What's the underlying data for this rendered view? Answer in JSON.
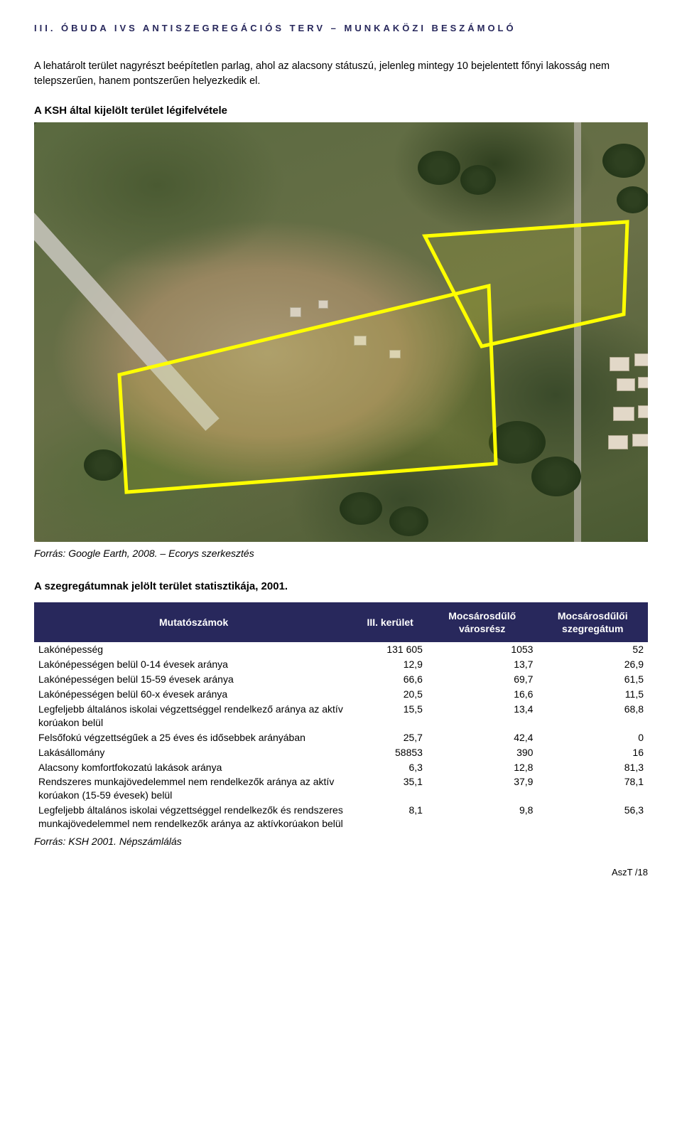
{
  "header": {
    "text": "III. ÓBUDA IVS ANTISZEGREGÁCIÓS TERV – MUNKAKÖZI BESZÁMOLÓ"
  },
  "intro": {
    "paragraph": "A lehatárolt terület nagyrészt beépítetlen parlag, ahol az alacsony státuszú, jelenleg mintegy 10 bejelentett főnyi lakosság nem telepszerűen, hanem pontszerűen helyezkedik el."
  },
  "aerial": {
    "heading": "A KSH által kijelölt terület légifelvétele",
    "caption": "Forrás: Google Earth, 2008. – Ecorys szerkesztés",
    "polygon1_points": "120,355 640,230 650,480 130,520",
    "polygon2_points": "550,160 835,140 830,270 630,315",
    "overlay_stroke": "#ffff00",
    "overlay_fill": "rgba(255,255,0,0.05)"
  },
  "stats": {
    "title": "A szegregátumnak jelölt terület statisztikája, 2001.",
    "columns": [
      "Mutatószámok",
      "III. kerület",
      "Mocsárosdűlő városrész",
      "Mocsárosdűlői szegregátum"
    ],
    "rows": [
      [
        "Lakónépesség",
        "131 605",
        "1053",
        "52"
      ],
      [
        "Lakónépességen belül 0-14 évesek aránya",
        "12,9",
        "13,7",
        "26,9"
      ],
      [
        "Lakónépességen belül 15-59 évesek aránya",
        "66,6",
        "69,7",
        "61,5"
      ],
      [
        "Lakónépességen belül 60-x évesek aránya",
        "20,5",
        "16,6",
        "11,5"
      ],
      [
        "Legfeljebb általános iskolai végzettséggel rendelkező aránya az aktív korúakon belül",
        "15,5",
        "13,4",
        "68,8"
      ],
      [
        "Felsőfokú végzettségűek a 25 éves és idősebbek arányában",
        "25,7",
        "42,4",
        "0"
      ],
      [
        "Lakásállomány",
        "58853",
        "390",
        "16"
      ],
      [
        "Alacsony komfortfokozatú lakások aránya",
        "6,3",
        "12,8",
        "81,3"
      ],
      [
        "Rendszeres munkajövedelemmel nem rendelkezők aránya az aktív korúakon (15-59 évesek) belül",
        "35,1",
        "37,9",
        "78,1"
      ],
      [
        "Legfeljebb általános iskolai végzettséggel rendelkezők és rendszeres munkajövedelemmel nem rendelkezők aránya az aktívkorúakon belül",
        "8,1",
        "9,8",
        "56,3"
      ]
    ],
    "source": "Forrás: KSH 2001. Népszámlálás",
    "header_bg": "#28285c",
    "header_color": "#ffffff"
  },
  "footer": {
    "text": "AszT /18"
  }
}
